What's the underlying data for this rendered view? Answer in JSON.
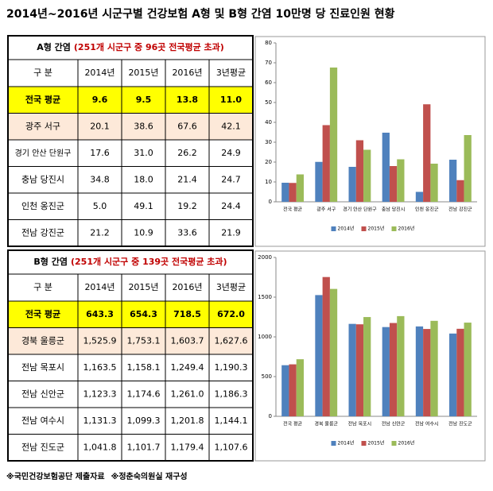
{
  "title": "2014년~2016년 시군구별 건강보험 A형 및 B형 간염 10만명 당 진료인원 현황",
  "tables": [
    {
      "title": "A형 간염",
      "note": "(251개 시군구 중 96곳 전국평균 초과)",
      "columns": [
        "구 분",
        "2014년",
        "2015년",
        "2016년",
        "3년평균"
      ],
      "rows": [
        [
          "전국 평균",
          "9.6",
          "9.5",
          "13.8",
          "11.0"
        ],
        [
          "광주 서구",
          "20.1",
          "38.6",
          "67.6",
          "42.1"
        ],
        [
          "경기 안산 단원구",
          "17.6",
          "31.0",
          "26.2",
          "24.9"
        ],
        [
          "충남 당진시",
          "34.8",
          "18.0",
          "21.4",
          "24.7"
        ],
        [
          "인천 옹진군",
          "5.0",
          "49.1",
          "19.2",
          "24.4"
        ],
        [
          "전남 강진군",
          "21.2",
          "10.9",
          "33.6",
          "21.9"
        ]
      ]
    },
    {
      "title": "B형 간염",
      "note": "(251개 시군구 중 139곳 전국평균 초과)",
      "columns": [
        "구 분",
        "2014년",
        "2015년",
        "2016년",
        "3년평균"
      ],
      "rows": [
        [
          "전국 평균",
          "643.3",
          "654.3",
          "718.5",
          "672.0"
        ],
        [
          "경북 울릉군",
          "1,525.9",
          "1,753.1",
          "1,603.7",
          "1,627.6"
        ],
        [
          "전남 목포시",
          "1,163.5",
          "1,158.1",
          "1,249.4",
          "1,190.3"
        ],
        [
          "전남 신안군",
          "1,123.3",
          "1,174.6",
          "1,261.0",
          "1,186.3"
        ],
        [
          "전남 여수시",
          "1,131.3",
          "1,099.3",
          "1,201.8",
          "1,144.1"
        ],
        [
          "전남 진도군",
          "1,041.8",
          "1,101.7",
          "1,179.4",
          "1,107.6"
        ]
      ]
    }
  ],
  "chart_data": [
    {
      "type": "bar",
      "legend": "bottom",
      "categories": [
        "전국 평균",
        "광주 서구",
        "경기 안산 단원구",
        "충남 당진시",
        "인천 옹진군",
        "전남 강진군"
      ],
      "series": [
        {
          "name": "2014년",
          "color": "#4f81bd",
          "values": [
            9.6,
            20.1,
            17.6,
            34.8,
            5.0,
            21.2
          ]
        },
        {
          "name": "2015년",
          "color": "#c0504d",
          "values": [
            9.5,
            38.6,
            31.0,
            18.0,
            49.1,
            10.9
          ]
        },
        {
          "name": "2016년",
          "color": "#9bbb59",
          "values": [
            13.8,
            67.6,
            26.2,
            21.4,
            19.2,
            33.6
          ]
        }
      ],
      "ylim": [
        0,
        80
      ],
      "yticks": [
        0,
        10,
        20,
        30,
        40,
        50,
        60,
        70,
        80
      ]
    },
    {
      "type": "bar",
      "legend": "bottom",
      "categories": [
        "전국 평균",
        "경북 울릉군",
        "전남 목포시",
        "전남 신안군",
        "전남 여수시",
        "전남 진도군"
      ],
      "series": [
        {
          "name": "2014년",
          "color": "#4f81bd",
          "values": [
            643.3,
            1525.9,
            1163.5,
            1123.3,
            1131.3,
            1041.8
          ]
        },
        {
          "name": "2015년",
          "color": "#c0504d",
          "values": [
            654.3,
            1753.1,
            1158.1,
            1174.6,
            1099.3,
            1101.7
          ]
        },
        {
          "name": "2016년",
          "color": "#9bbb59",
          "values": [
            718.5,
            1603.7,
            1249.4,
            1261.0,
            1201.8,
            1179.4
          ]
        }
      ],
      "ylim": [
        0,
        2000
      ],
      "yticks": [
        0,
        500,
        1000,
        1500,
        2000
      ]
    }
  ],
  "footnotes": [
    "※국민건강보험공단 제출자료",
    "※정춘숙의원실 재구성"
  ]
}
